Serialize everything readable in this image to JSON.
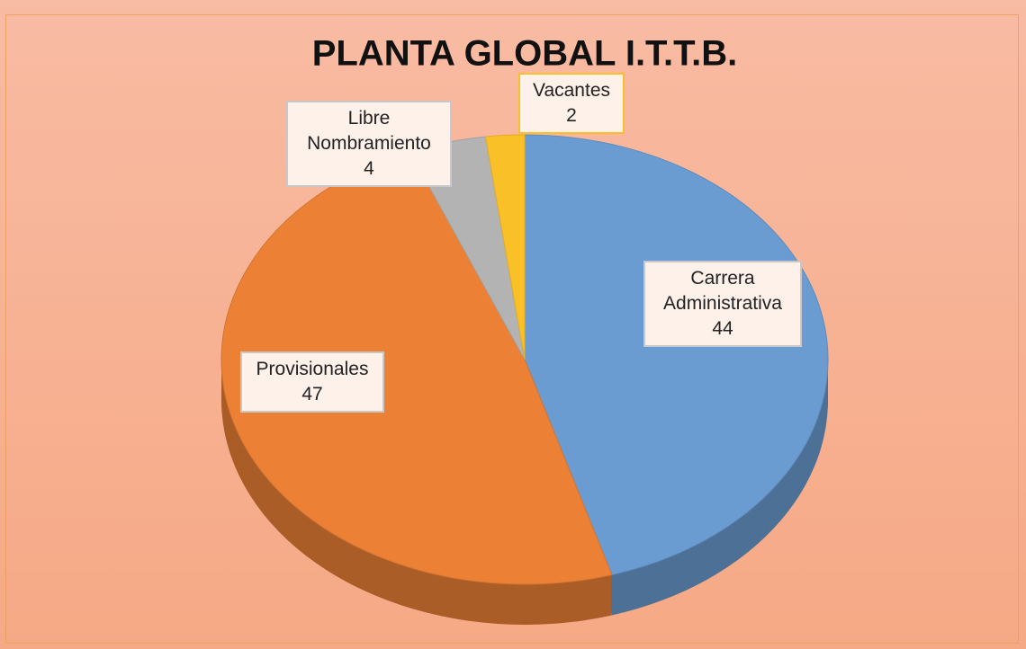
{
  "chart_data": {
    "type": "pie",
    "title": "PLANTA GLOBAL I.T.T.B.",
    "categories": [
      "Carrera Administrativa",
      "Provisionales",
      "Libre Nombramiento",
      "Vacantes"
    ],
    "values": [
      44,
      47,
      4,
      2
    ],
    "colors": [
      "#6a9bd1",
      "#ec8136",
      "#b3b3b3",
      "#f9c027"
    ]
  }
}
